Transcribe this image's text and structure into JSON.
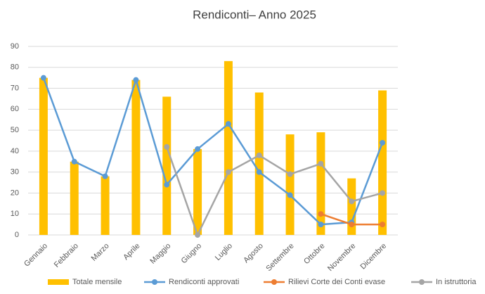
{
  "chart_data": {
    "type": "bar",
    "title": "Rendiconti– Anno 2025",
    "categories": [
      "Gennaio",
      "Febbraio",
      "Marzo",
      "Aprile",
      "Maggio",
      "Giugno",
      "Luglio",
      "Agosto",
      "Settembre",
      "Ottobre",
      "Novembre",
      "Dicembre"
    ],
    "series": [
      {
        "name": "Totale mensile",
        "type": "bar",
        "color": "#FFC000",
        "values": [
          75,
          35,
          28,
          74,
          66,
          41,
          83,
          68,
          48,
          49,
          27,
          69
        ]
      },
      {
        "name": "Rendiconti approvati",
        "type": "line",
        "color": "#5B9BD5",
        "values": [
          75,
          35,
          28,
          74,
          24,
          41,
          53,
          30,
          19,
          5,
          6,
          44
        ]
      },
      {
        "name": "Rilievi Corte dei Conti evase",
        "type": "line",
        "color": "#ED7D31",
        "values": [
          null,
          null,
          null,
          null,
          null,
          null,
          null,
          null,
          null,
          10,
          5,
          5
        ]
      },
      {
        "name": "In istruttoria",
        "type": "line",
        "color": "#A5A5A5",
        "values": [
          null,
          null,
          null,
          null,
          42,
          0,
          30,
          38,
          29,
          34,
          16,
          20
        ]
      }
    ],
    "ylim": [
      0,
      90
    ],
    "yticks": [
      0,
      10,
      20,
      30,
      40,
      50,
      60,
      70,
      80,
      90
    ],
    "grid": true,
    "legend": "bottom"
  }
}
